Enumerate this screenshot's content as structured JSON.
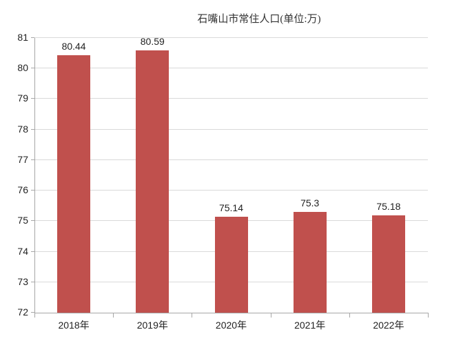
{
  "chart_data": {
    "type": "bar",
    "title": "石嘴山市常住人口(单位:万)",
    "categories": [
      "2018年",
      "2019年",
      "2020年",
      "2021年",
      "2022年"
    ],
    "values": [
      80.44,
      80.59,
      75.14,
      75.3,
      75.18
    ],
    "value_labels": [
      "80.44",
      "80.59",
      "75.14",
      "75.3",
      "75.18"
    ],
    "xlabel": "",
    "ylabel": "",
    "ylim": [
      72,
      81
    ],
    "ytick_step": 1,
    "ytick_labels": [
      "72",
      "73",
      "74",
      "75",
      "76",
      "77",
      "78",
      "79",
      "80",
      "81"
    ],
    "grid": true,
    "legend_position": "none",
    "colors": {
      "bar": "#C0504D",
      "gridline": "#D9D9D9",
      "axis": "#A6A6A6",
      "label_text": "#1F1F1F",
      "title_text": "#333333",
      "background": "#FFFFFF"
    }
  }
}
